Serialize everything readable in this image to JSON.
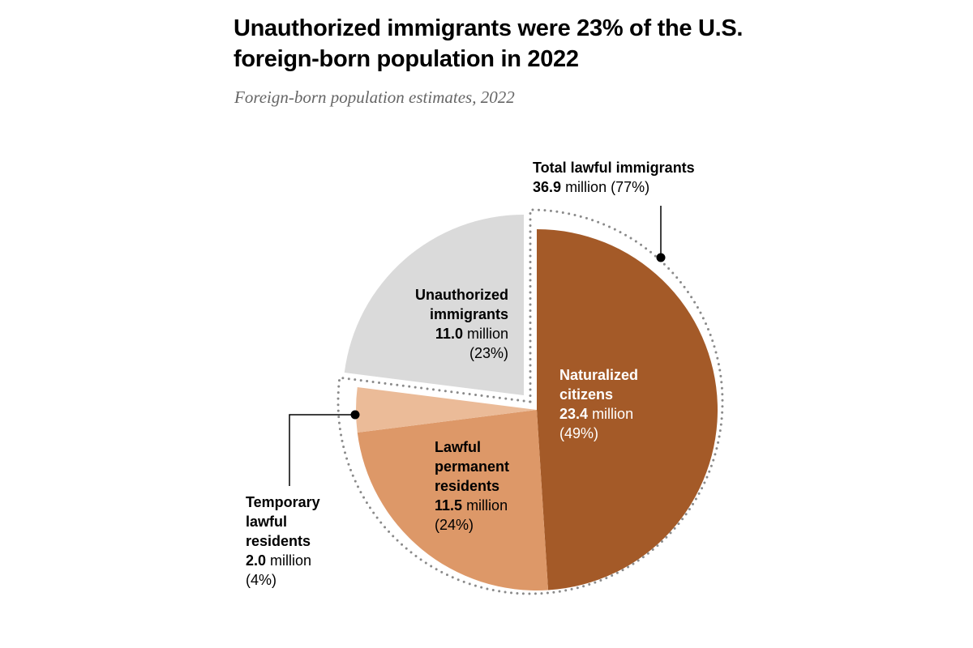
{
  "title": "Unauthorized immigrants were 23% of the U.S. foreign-born population in 2022",
  "subtitle": "Foreign-born population estimates, 2022",
  "colors": {
    "naturalized": "#A45A28",
    "lawful_permanent": "#DD9868",
    "temporary": "#EBBB98",
    "unauthorized": "#DADADA",
    "dotted": "#8A8A8A"
  },
  "chart_data": {
    "type": "pie",
    "title": "Unauthorized immigrants were 23% of the U.S. foreign-born population in 2022",
    "subtitle": "Foreign-born population estimates, 2022",
    "unit": "million",
    "slices": [
      {
        "key": "naturalized",
        "label": "Naturalized citizens",
        "value": 23.4,
        "percent": 49,
        "value_text": "23.4",
        "percent_text": "(49%)",
        "group": "lawful"
      },
      {
        "key": "lawful_permanent",
        "label": "Lawful permanent residents",
        "value": 11.5,
        "percent": 24,
        "value_text": "11.5",
        "percent_text": "(24%)",
        "group": "lawful"
      },
      {
        "key": "temporary",
        "label": "Temporary lawful residents",
        "value": 2.0,
        "percent": 4,
        "value_text": "2.0",
        "percent_text": "(4%)",
        "group": "lawful"
      },
      {
        "key": "unauthorized",
        "label": "Unauthorized immigrants",
        "value": 11.0,
        "percent": 23,
        "value_text": "11.0",
        "percent_text": "(23%)",
        "group": "unauthorized"
      }
    ],
    "group_annotation": {
      "label": "Total lawful immigrants",
      "value": 36.9,
      "percent": 77,
      "value_text": "36.9",
      "unit_text": "million",
      "percent_text": "(77%)"
    }
  },
  "labels": {
    "unit_word": "million",
    "naturalized_l1": "Naturalized",
    "naturalized_l2": "citizens",
    "lpr_l1": "Lawful",
    "lpr_l2": "permanent",
    "lpr_l3": "residents",
    "temp_l1": "Temporary",
    "temp_l2": "lawful",
    "temp_l3": "residents",
    "unauth_l1": "Unauthorized",
    "unauth_l2": "immigrants"
  }
}
